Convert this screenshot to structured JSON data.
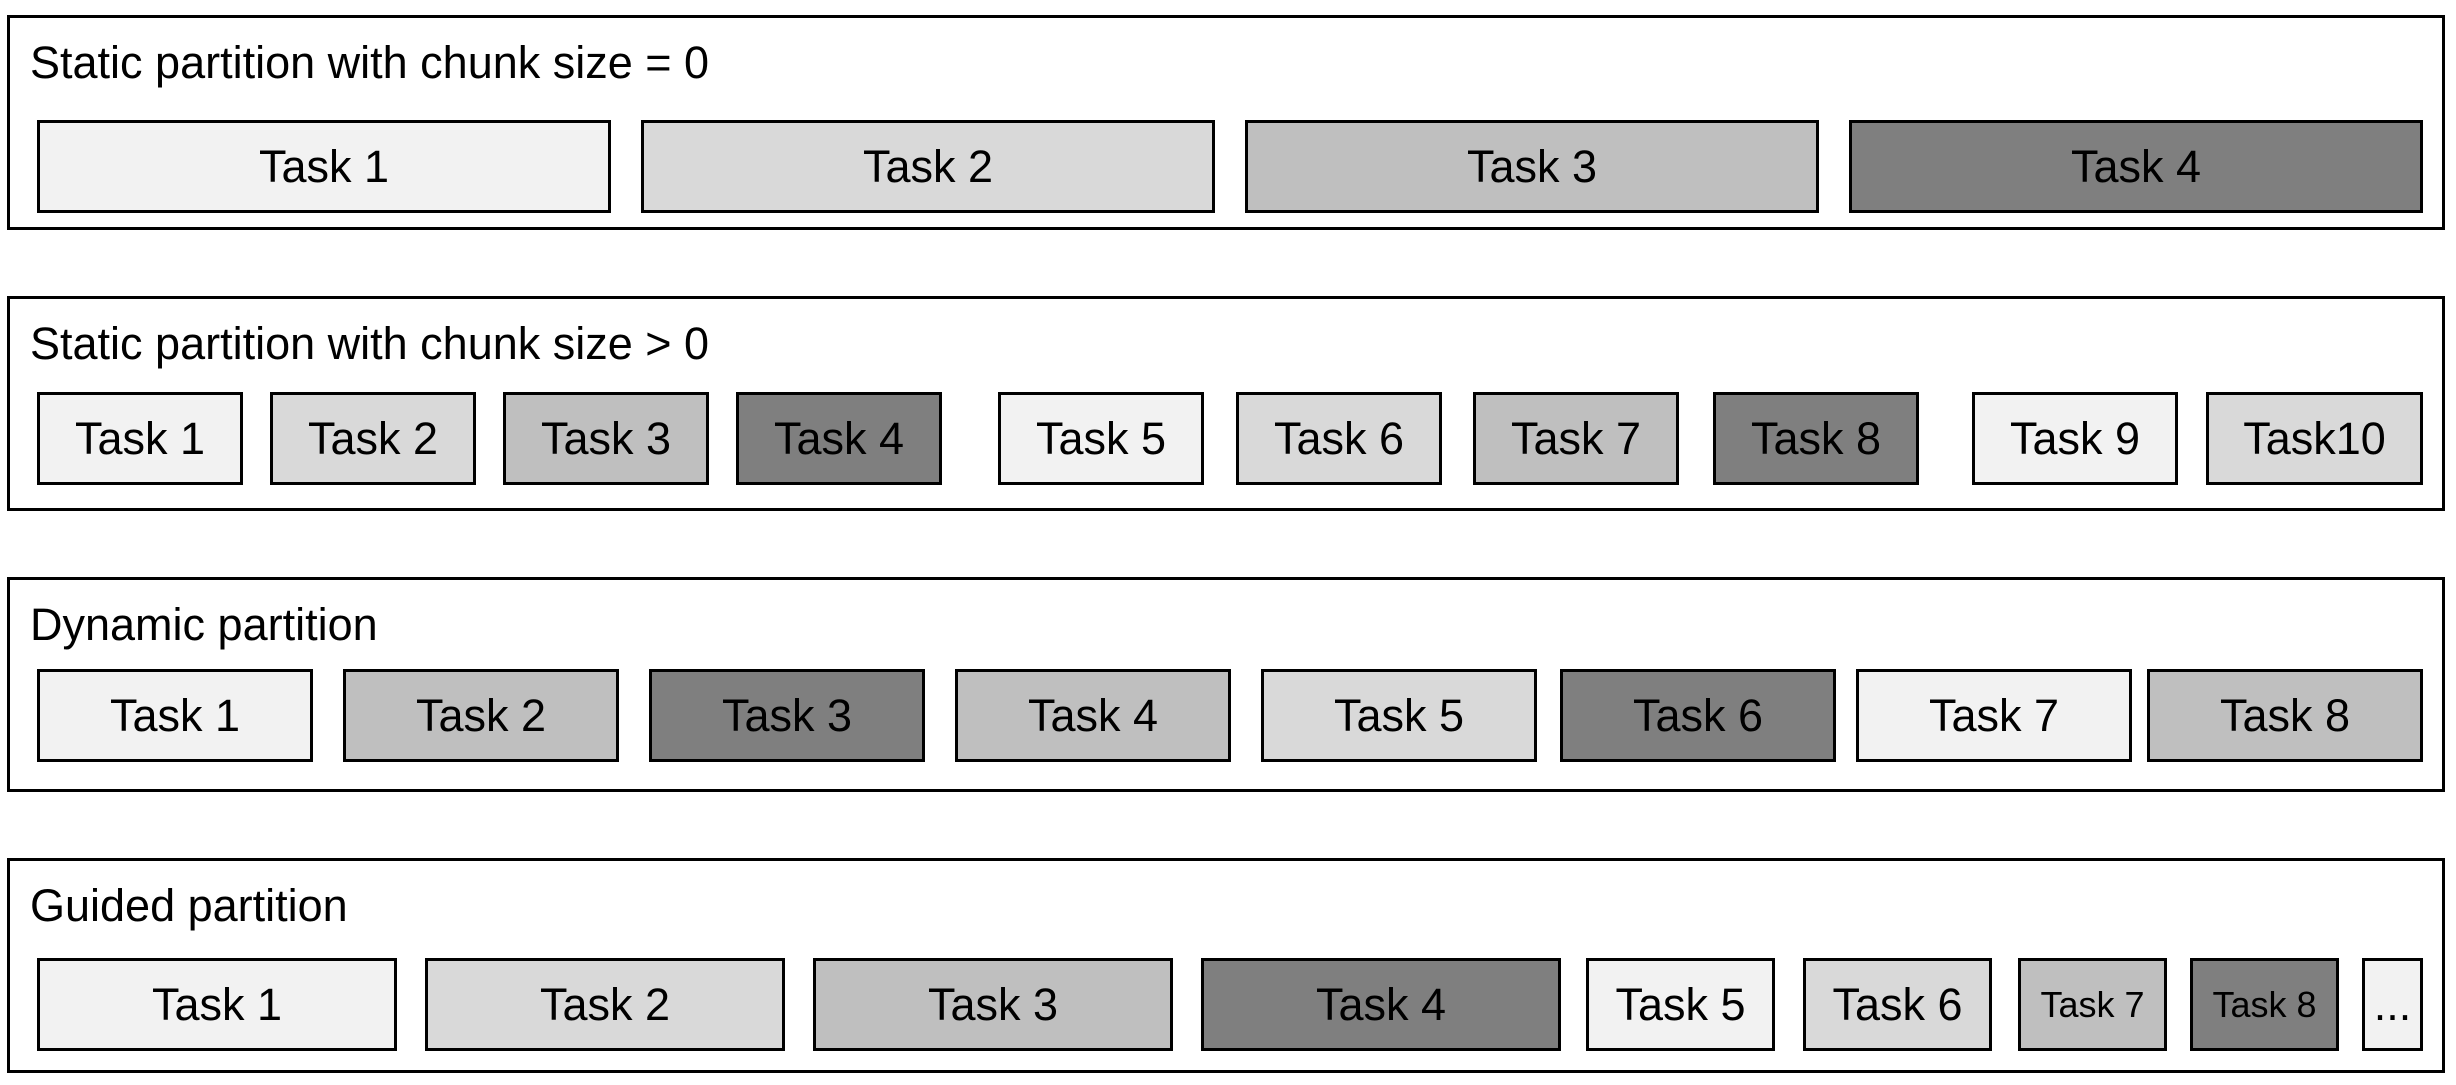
{
  "panels": [
    {
      "title": "Static partition with chunk size = 0",
      "tasks": [
        {
          "label": "Task 1",
          "shade": "white"
        },
        {
          "label": "Task 2",
          "shade": "light"
        },
        {
          "label": "Task 3",
          "shade": "mid"
        },
        {
          "label": "Task 4",
          "shade": "dark"
        }
      ]
    },
    {
      "title": "Static partition with chunk size > 0",
      "tasks": [
        {
          "label": "Task 1",
          "shade": "white"
        },
        {
          "label": "Task 2",
          "shade": "light"
        },
        {
          "label": "Task 3",
          "shade": "mid"
        },
        {
          "label": "Task 4",
          "shade": "dark"
        },
        {
          "label": "Task 5",
          "shade": "white"
        },
        {
          "label": "Task 6",
          "shade": "light"
        },
        {
          "label": "Task 7",
          "shade": "mid"
        },
        {
          "label": "Task 8",
          "shade": "dark"
        },
        {
          "label": "Task 9",
          "shade": "white"
        },
        {
          "label": "Task10",
          "shade": "light"
        }
      ]
    },
    {
      "title": "Dynamic partition",
      "tasks": [
        {
          "label": "Task 1",
          "shade": "white"
        },
        {
          "label": "Task 2",
          "shade": "mid"
        },
        {
          "label": "Task 3",
          "shade": "dark"
        },
        {
          "label": "Task 4",
          "shade": "mid"
        },
        {
          "label": "Task 5",
          "shade": "light"
        },
        {
          "label": "Task 6",
          "shade": "dark"
        },
        {
          "label": "Task 7",
          "shade": "white"
        },
        {
          "label": "Task 8",
          "shade": "mid"
        }
      ]
    },
    {
      "title": "Guided partition",
      "tasks": [
        {
          "label": "Task 1",
          "shade": "white"
        },
        {
          "label": "Task 2",
          "shade": "light"
        },
        {
          "label": "Task 3",
          "shade": "mid"
        },
        {
          "label": "Task 4",
          "shade": "dark"
        },
        {
          "label": "Task 5",
          "shade": "white"
        },
        {
          "label": "Task 6",
          "shade": "light"
        },
        {
          "label": "Task 7",
          "shade": "mid"
        },
        {
          "label": "Task 8",
          "shade": "dark"
        },
        {
          "label": "...",
          "shade": "white"
        }
      ]
    }
  ],
  "colors": {
    "white": "#f2f2f2",
    "light": "#d9d9d9",
    "mid": "#bfbfbf",
    "dark": "#7f7f7f"
  }
}
